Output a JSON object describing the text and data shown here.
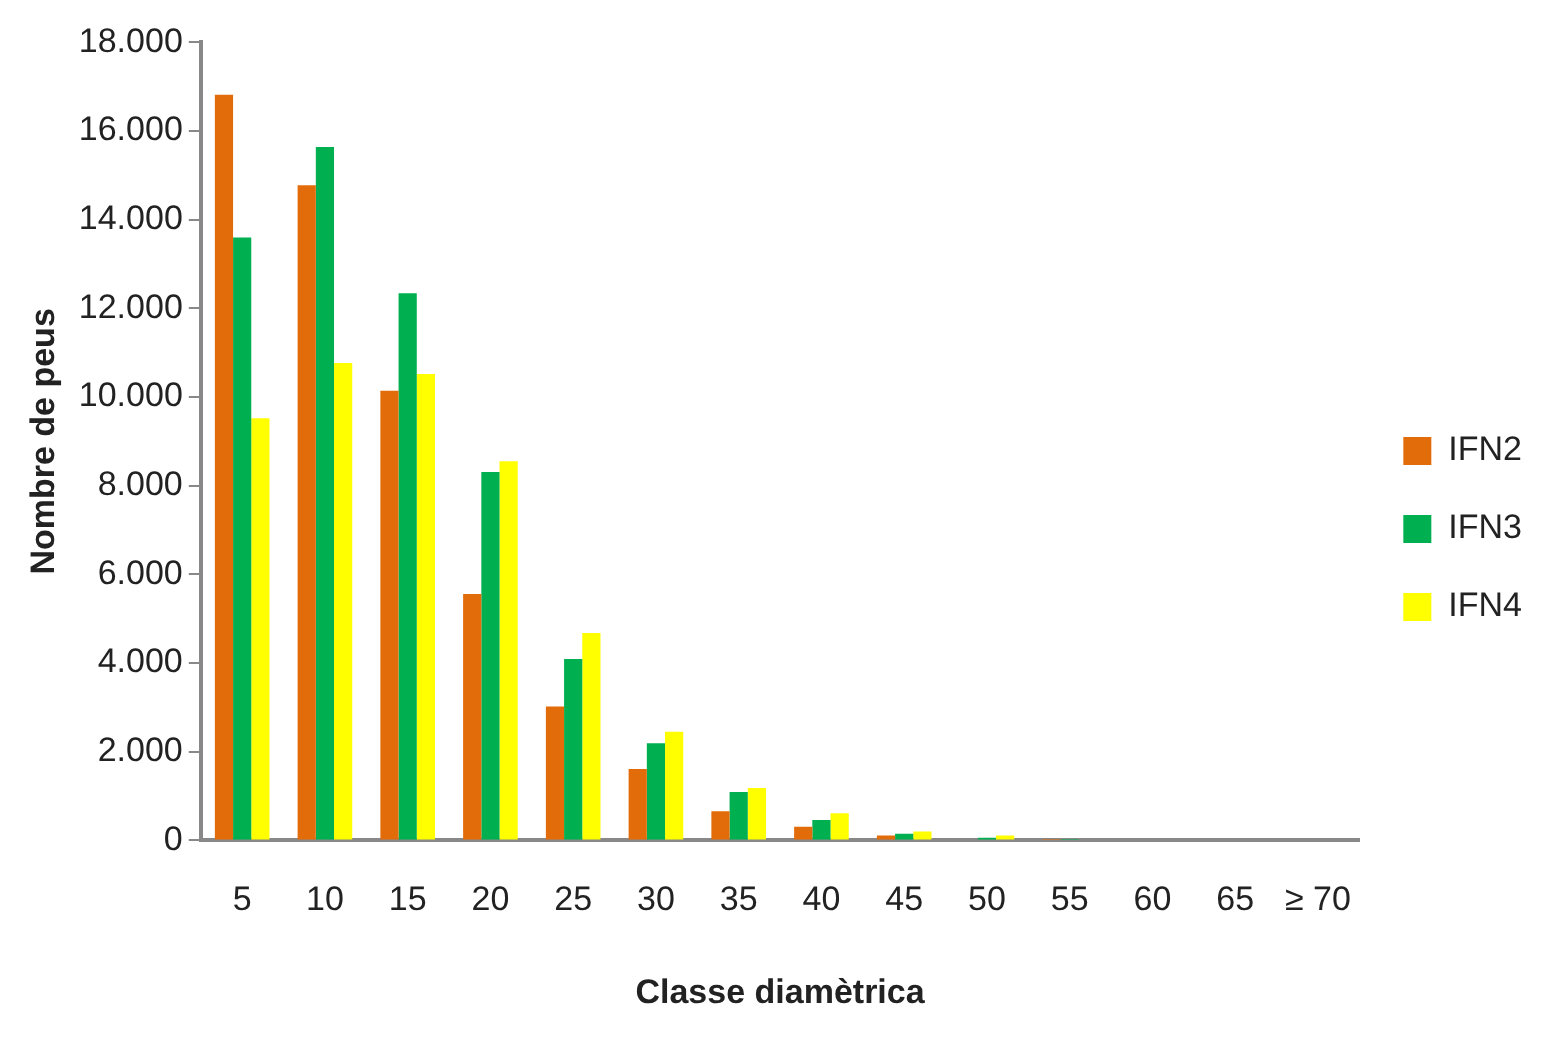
{
  "chart_data": {
    "type": "bar",
    "xlabel": "Classe diamètrica",
    "ylabel": "Nombre de peus",
    "categories": [
      "5",
      "10",
      "15",
      "20",
      "25",
      "30",
      "35",
      "40",
      "45",
      "50",
      "55",
      "60",
      "65",
      "≥ 70"
    ],
    "series": [
      {
        "name": "IFN2",
        "color": "#e36c0a",
        "values": [
          16820,
          14780,
          10140,
          5560,
          3020,
          1610,
          660,
          310,
          110,
          null,
          10,
          0,
          0,
          0
        ]
      },
      {
        "name": "IFN3",
        "color": "#00b050",
        "values": [
          13600,
          15640,
          12340,
          8310,
          4090,
          2190,
          1090,
          460,
          150,
          60,
          10,
          0,
          0,
          0
        ]
      },
      {
        "name": "IFN4",
        "color": "#ffff00",
        "values": [
          9520,
          10770,
          10520,
          8550,
          4680,
          2450,
          1180,
          610,
          200,
          110,
          null,
          0,
          0,
          0
        ]
      }
    ],
    "ylim": [
      0,
      18000
    ],
    "yticks": [
      {
        "value": 0,
        "label": "0"
      },
      {
        "value": 2000,
        "label": "2.000"
      },
      {
        "value": 4000,
        "label": "4.000"
      },
      {
        "value": 6000,
        "label": "6.000"
      },
      {
        "value": 8000,
        "label": "8.000"
      },
      {
        "value": 10000,
        "label": "10.000"
      },
      {
        "value": 12000,
        "label": "12.000"
      },
      {
        "value": 14000,
        "label": "14.000"
      },
      {
        "value": 16000,
        "label": "16.000"
      },
      {
        "value": 18000,
        "label": "18.000"
      }
    ],
    "grid": false,
    "legend": "right"
  }
}
